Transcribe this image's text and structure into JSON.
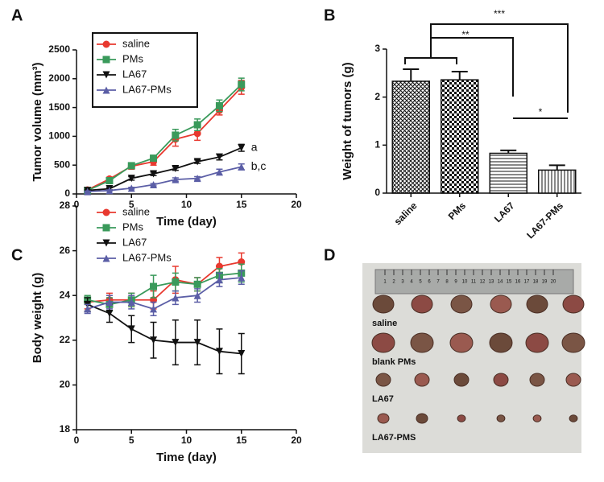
{
  "chart_data": [
    {
      "type": "line",
      "panel_label": "A",
      "xlabel": "Time (day)",
      "ylabel": "Tumor volume (mm³)",
      "x": [
        1,
        3,
        5,
        7,
        9,
        11,
        13,
        15
      ],
      "xlim": [
        0,
        20
      ],
      "xticks": [
        0,
        5,
        10,
        15,
        20
      ],
      "ylim": [
        0,
        2500
      ],
      "yticks": [
        0,
        500,
        1000,
        1500,
        2000,
        2500
      ],
      "legend": "upper left",
      "legend_frame": true,
      "series": [
        {
          "name": "saline",
          "color": "#e8392f",
          "marker": "circle",
          "values": [
            70,
            260,
            480,
            560,
            950,
            1050,
            1450,
            1850
          ],
          "errors": [
            20,
            30,
            50,
            60,
            120,
            120,
            80,
            120
          ]
        },
        {
          "name": "PMs",
          "color": "#3a9a5b",
          "marker": "square",
          "values": [
            60,
            230,
            490,
            620,
            1020,
            1200,
            1530,
            1900
          ],
          "errors": [
            20,
            30,
            40,
            50,
            100,
            100,
            100,
            110
          ]
        },
        {
          "name": "LA67",
          "color": "#111111",
          "marker": "triangle-down",
          "values": [
            60,
            90,
            270,
            350,
            440,
            560,
            640,
            800
          ],
          "errors": [
            10,
            20,
            30,
            30,
            30,
            30,
            50,
            60
          ]
        },
        {
          "name": "LA67-PMs",
          "color": "#5b5ea6",
          "marker": "triangle-up",
          "values": [
            40,
            60,
            100,
            160,
            250,
            270,
            380,
            470
          ],
          "errors": [
            10,
            10,
            15,
            20,
            30,
            30,
            50,
            50
          ]
        }
      ],
      "annotations": [
        "a",
        "b,c"
      ]
    },
    {
      "type": "bar",
      "panel_label": "B",
      "ylabel": "Weight of tumors (g)",
      "categories": [
        "saline",
        "PMs",
        "LA67",
        "LA67-PMs"
      ],
      "values": [
        2.33,
        2.36,
        0.83,
        0.48
      ],
      "errors": [
        0.25,
        0.17,
        0.06,
        0.1
      ],
      "patterns": [
        "crosshatch",
        "checkerboard",
        "horizontal",
        "vertical"
      ],
      "ylim": [
        0,
        3
      ],
      "yticks": [
        0,
        1,
        2,
        3
      ],
      "significance": [
        "***",
        "**",
        "*"
      ]
    },
    {
      "type": "line",
      "panel_label": "C",
      "xlabel": "Time (day)",
      "ylabel": "Body weight (g)",
      "x": [
        1,
        3,
        5,
        7,
        9,
        11,
        13,
        15
      ],
      "xlim": [
        0,
        20
      ],
      "xticks": [
        0,
        5,
        10,
        15,
        20
      ],
      "ylim": [
        18,
        28
      ],
      "yticks": [
        18,
        20,
        22,
        24,
        26,
        28
      ],
      "legend": "upper left",
      "legend_frame": false,
      "series": [
        {
          "name": "saline",
          "color": "#e8392f",
          "marker": "circle",
          "values": [
            23.7,
            23.8,
            23.8,
            23.8,
            24.7,
            24.5,
            25.3,
            25.5
          ],
          "errors": [
            0.3,
            0.3,
            0.3,
            0.4,
            0.6,
            0.3,
            0.4,
            0.4
          ]
        },
        {
          "name": "PMs",
          "color": "#3a9a5b",
          "marker": "square",
          "values": [
            23.8,
            23.6,
            23.8,
            24.4,
            24.6,
            24.5,
            24.9,
            25.0
          ],
          "errors": [
            0.2,
            0.3,
            0.3,
            0.5,
            0.4,
            0.3,
            0.3,
            0.4
          ]
        },
        {
          "name": "LA67",
          "color": "#111111",
          "marker": "triangle-down",
          "values": [
            23.6,
            23.2,
            22.5,
            22.0,
            21.9,
            21.9,
            21.5,
            21.4
          ],
          "errors": [
            0.3,
            0.4,
            0.6,
            0.8,
            1.0,
            1.0,
            1.0,
            0.9
          ]
        },
        {
          "name": "LA67-PMs",
          "color": "#5b5ea6",
          "marker": "triangle-up",
          "values": [
            23.4,
            23.7,
            23.7,
            23.4,
            23.9,
            24.0,
            24.7,
            24.8
          ],
          "errors": [
            0.2,
            0.3,
            0.3,
            0.3,
            0.3,
            0.3,
            0.3,
            0.3
          ]
        }
      ]
    }
  ],
  "photo": {
    "panel_label": "D",
    "labels": [
      "saline",
      "blank PMs",
      "LA67",
      "LA67-PMS"
    ],
    "ruler_labels": [
      "1",
      "2",
      "3",
      "4",
      "5",
      "6",
      "7",
      "8",
      "9",
      "10",
      "11",
      "12",
      "13",
      "14",
      "15",
      "16",
      "17",
      "18",
      "19",
      "20"
    ]
  }
}
